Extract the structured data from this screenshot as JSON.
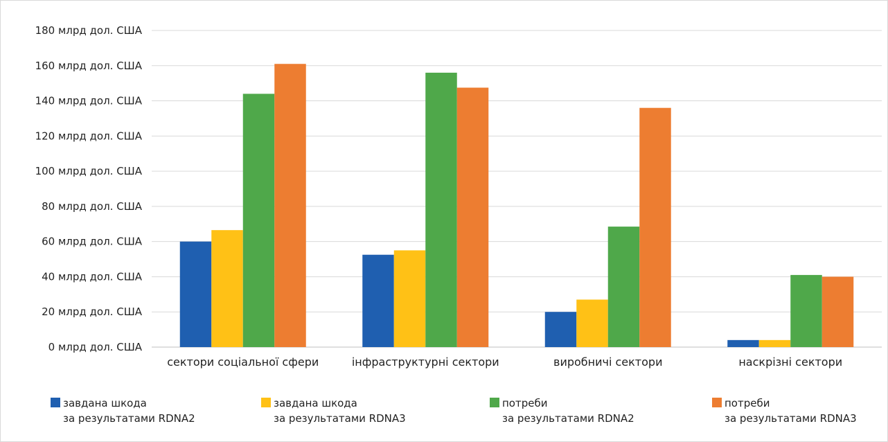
{
  "chart_data": {
    "type": "bar",
    "categories": [
      "сектори соціальної сфери",
      "інфраструктурні сектори",
      "виробничі сектори",
      "наскрізні сектори"
    ],
    "series": [
      {
        "name": "завдана шкода за результатами RDNA2",
        "color": "#1f5fb0",
        "values": [
          60,
          52.5,
          20,
          4
        ]
      },
      {
        "name": "завдана шкода за результатами RDNA3",
        "color": "#ffc116",
        "values": [
          66.5,
          55,
          27,
          4
        ]
      },
      {
        "name": "потреби за результатами RDNA2",
        "color": "#4fa84a",
        "values": [
          144,
          156,
          68.5,
          41
        ]
      },
      {
        "name": "потреби за результатами RDNA3",
        "color": "#ed7d31",
        "values": [
          161,
          147.5,
          136,
          40
        ]
      }
    ],
    "y_ticks": [
      {
        "value": 0,
        "label": "0  млрд дол. США"
      },
      {
        "value": 20,
        "label": "20  млрд дол. США"
      },
      {
        "value": 40,
        "label": "40  млрд дол. США"
      },
      {
        "value": 60,
        "label": "60  млрд дол. США"
      },
      {
        "value": 80,
        "label": "80  млрд дол. США"
      },
      {
        "value": 100,
        "label": "100  млрд дол. США"
      },
      {
        "value": 120,
        "label": "120  млрд дол. США"
      },
      {
        "value": 140,
        "label": "140  млрд дол. США"
      },
      {
        "value": 160,
        "label": "160  млрд дол. США"
      },
      {
        "value": 180,
        "label": "180  млрд дол. США"
      }
    ],
    "ylim": [
      0,
      180
    ],
    "grid": true,
    "legend_position": "bottom",
    "legend": [
      {
        "line1": "завдана шкода",
        "line2": "за результатами RDNA2",
        "color": "#1f5fb0"
      },
      {
        "line1": "завдана шкода",
        "line2": "за результатами RDNA3",
        "color": "#ffc116"
      },
      {
        "line1": "потреби",
        "line2": "за результатами RDNA2",
        "color": "#4fa84a"
      },
      {
        "line1": "потреби",
        "line2": "за результатами RDNA3",
        "color": "#ed7d31"
      }
    ]
  }
}
